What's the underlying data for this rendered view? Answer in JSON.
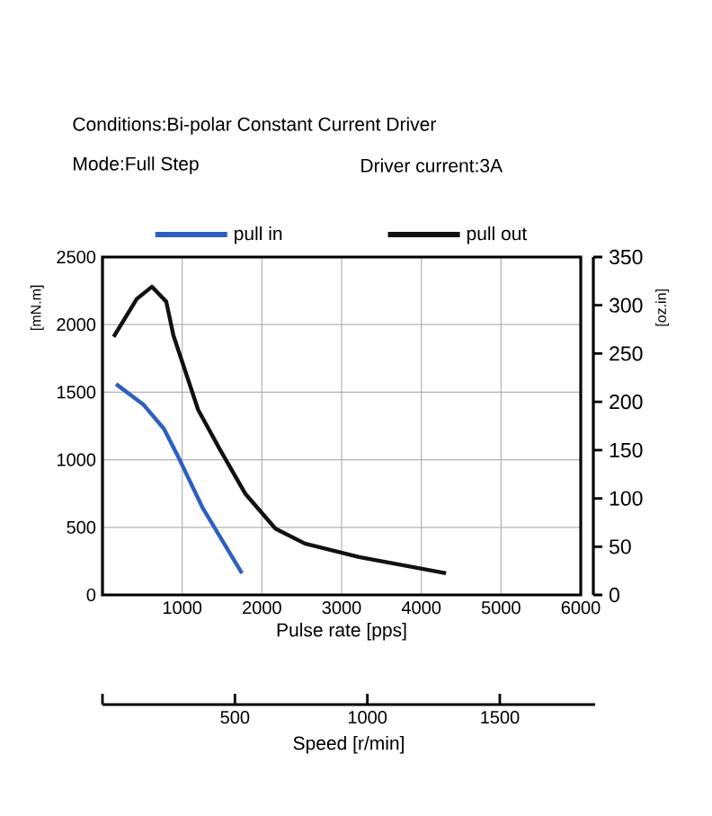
{
  "chart_data": {
    "type": "line",
    "xlabel": "Pulse rate [pps]",
    "ylabel": "[mN.m]",
    "y2label": "[oz.in]",
    "x2label": "Speed [r/min]",
    "annotations": [
      "Conditions:Bi-polar Constant Current Driver",
      "Mode:Full Step",
      "Driver current:3A"
    ],
    "series": [
      {
        "name": "pull in",
        "color": "#2f5fbf",
        "x": [
          170,
          510,
          770,
          960,
          1260,
          1750
        ],
        "values": [
          1560,
          1410,
          1230,
          1010,
          640,
          160
        ]
      },
      {
        "name": "pull out",
        "color": "#111111",
        "x": [
          140,
          430,
          620,
          800,
          890,
          1200,
          1470,
          1790,
          2170,
          2540,
          3220,
          4310
        ],
        "values": [
          1910,
          2190,
          2280,
          2170,
          1920,
          1370,
          1080,
          750,
          490,
          380,
          280,
          160
        ]
      }
    ],
    "xlim": [
      0,
      6000
    ],
    "xticks": [
      1000,
      2000,
      3000,
      4000,
      5000,
      6000
    ],
    "ylim": [
      0,
      2500
    ],
    "yticks": [
      0,
      500,
      1000,
      1500,
      2000,
      2500
    ],
    "y2lim": [
      0,
      350
    ],
    "y2ticks": [
      0,
      50,
      100,
      150,
      200,
      250,
      300,
      350
    ],
    "x2lim": [
      0,
      1860
    ],
    "x2ticks": [
      {
        "value": 0,
        "label": null
      },
      500,
      1000,
      1500
    ],
    "grid": true,
    "legend": "top",
    "line_style": "solid",
    "marker": "none"
  }
}
